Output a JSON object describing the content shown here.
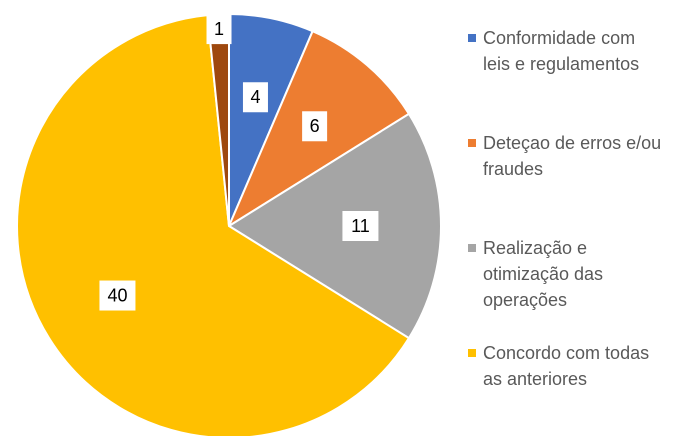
{
  "chart_data": {
    "type": "pie",
    "categories": [
      "Conformidade com leis e regulamentos",
      "Deteçao de erros e/ou fraudes",
      "Realização e otimização das operações",
      "Concordo com todas as anteriores",
      null
    ],
    "values": [
      4,
      6,
      11,
      40,
      1
    ],
    "colors": [
      "#4472c4",
      "#ed7d31",
      "#a5a5a5",
      "#ffc000",
      "#9e480e"
    ]
  }
}
